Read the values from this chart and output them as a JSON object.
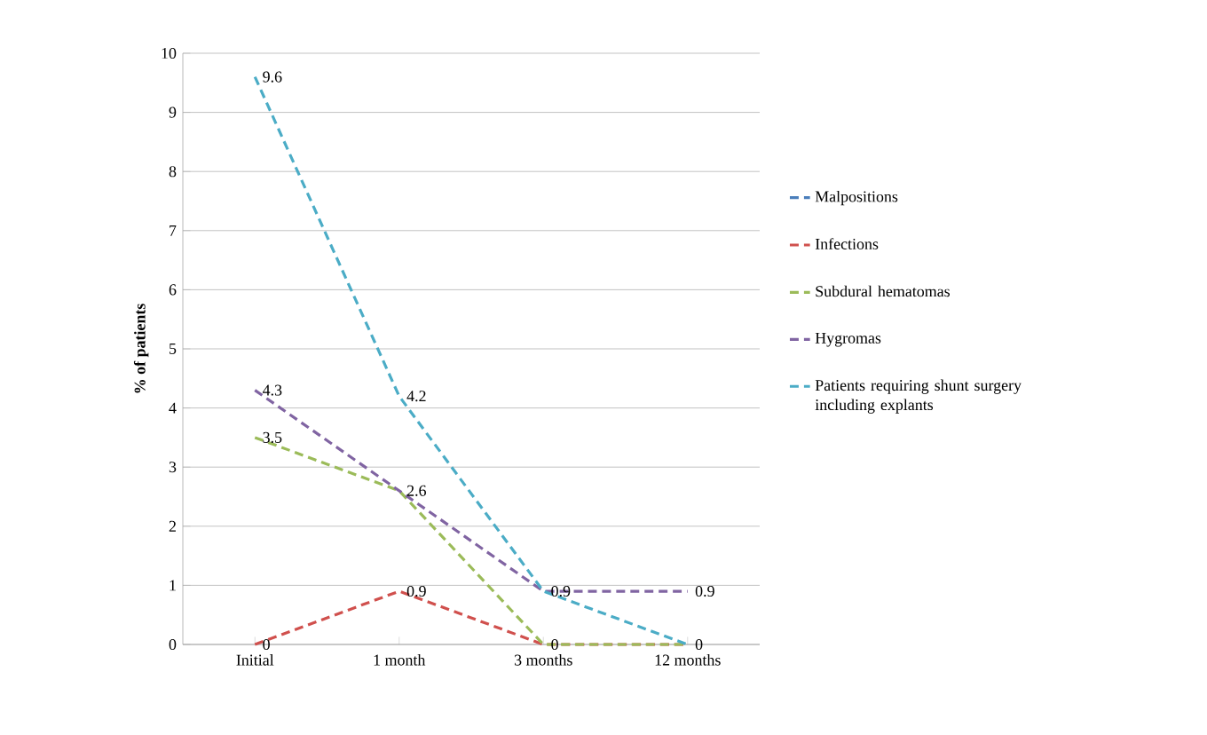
{
  "chart_data": {
    "type": "line",
    "ylabel": "% of patients",
    "categories": [
      "Initial",
      "1 month",
      "3 months",
      "12 months"
    ],
    "series": [
      {
        "name": "Malpositions",
        "color": "#4a7ebb",
        "values": [
          null,
          null,
          null,
          null
        ]
      },
      {
        "name": "Infections",
        "color": "#d0504d",
        "values": [
          0,
          0.9,
          0,
          0
        ],
        "value_labels": [
          "0",
          "0.9",
          null,
          null
        ]
      },
      {
        "name": "Subdural hematomas",
        "color": "#9bbb59",
        "values": [
          3.5,
          2.6,
          0,
          0
        ],
        "value_labels": [
          "3.5",
          null,
          "0",
          null
        ]
      },
      {
        "name": "Hygromas",
        "color": "#8064a2",
        "values": [
          4.3,
          2.6,
          0.9,
          0.9
        ],
        "value_labels": [
          "4.3",
          "2.6",
          "0.9",
          "0.9"
        ]
      },
      {
        "name": "Patients requiring shunt surgery including explants",
        "color": "#4bacc6",
        "values": [
          9.6,
          4.2,
          0.9,
          0
        ],
        "value_labels": [
          "9.6",
          "4.2",
          null,
          "0"
        ]
      }
    ],
    "ylim": [
      0,
      10
    ],
    "yticks": [
      0,
      1,
      2,
      3,
      4,
      5,
      6,
      7,
      8,
      9,
      10
    ],
    "grid": "y",
    "legend": "right",
    "line_style": "dashed",
    "marker": "none"
  }
}
